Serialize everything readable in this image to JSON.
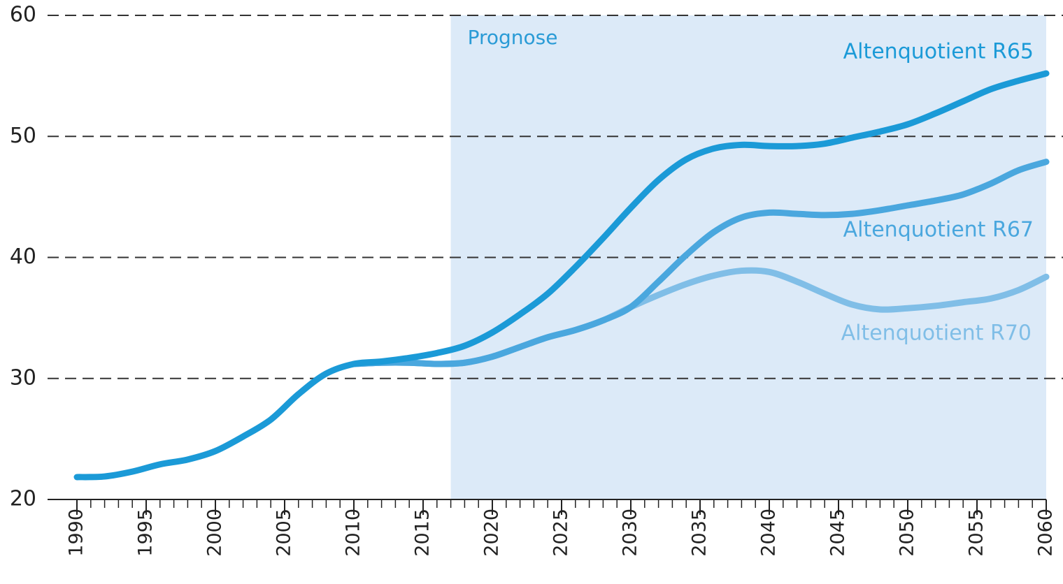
{
  "chart_data": {
    "type": "line",
    "annotation": "Prognose",
    "forecast_start": 2017,
    "forecast_color": "#dceaf8",
    "x": [
      1990,
      1992,
      1994,
      1996,
      1998,
      2000,
      2002,
      2004,
      2006,
      2008,
      2010,
      2012,
      2014,
      2016,
      2018,
      2020,
      2022,
      2024,
      2026,
      2028,
      2030,
      2032,
      2034,
      2036,
      2038,
      2040,
      2042,
      2044,
      2046,
      2048,
      2050,
      2052,
      2054,
      2056,
      2058,
      2060
    ],
    "series": [
      {
        "name": "Altenquotient R65",
        "color": "#1b9ad7",
        "values": [
          21.85,
          21.9,
          22.3,
          22.9,
          23.3,
          24.0,
          25.2,
          26.6,
          28.7,
          30.4,
          31.2,
          31.4,
          31.7,
          32.1,
          32.7,
          33.8,
          35.3,
          37.0,
          39.2,
          41.6,
          44.1,
          46.4,
          48.1,
          49.0,
          49.3,
          49.2,
          49.2,
          49.4,
          49.9,
          50.4,
          51.0,
          51.9,
          52.9,
          53.9,
          54.6,
          55.2
        ]
      },
      {
        "name": "Altenquotient R67",
        "color": "#4aa7de",
        "values": [
          null,
          null,
          null,
          null,
          null,
          null,
          null,
          null,
          null,
          null,
          31.2,
          31.3,
          31.3,
          31.2,
          31.3,
          31.8,
          32.6,
          33.4,
          34.0,
          34.8,
          35.9,
          38.0,
          40.2,
          42.1,
          43.3,
          43.7,
          43.6,
          43.5,
          43.6,
          43.9,
          44.3,
          44.7,
          45.2,
          46.1,
          47.2,
          47.9
        ]
      },
      {
        "name": "Altenquotient R70",
        "color": "#80bee7",
        "values": [
          null,
          null,
          null,
          null,
          null,
          null,
          null,
          null,
          null,
          null,
          31.2,
          31.3,
          31.3,
          31.2,
          31.3,
          31.8,
          32.6,
          33.4,
          34.0,
          34.8,
          35.9,
          36.9,
          37.8,
          38.5,
          38.9,
          38.8,
          38.0,
          37.0,
          36.1,
          35.7,
          35.8,
          36.0,
          36.3,
          36.6,
          37.3,
          38.4
        ]
      }
    ],
    "xlim": [
      1990,
      2060
    ],
    "xticks": [
      1990,
      1995,
      2000,
      2005,
      2010,
      2015,
      2020,
      2025,
      2030,
      2035,
      2040,
      2045,
      2050,
      2055,
      2060
    ],
    "xminor_step": 1,
    "ylim": [
      20,
      60
    ],
    "yticks": [
      20,
      30,
      40,
      50,
      60
    ],
    "grid": true
  }
}
